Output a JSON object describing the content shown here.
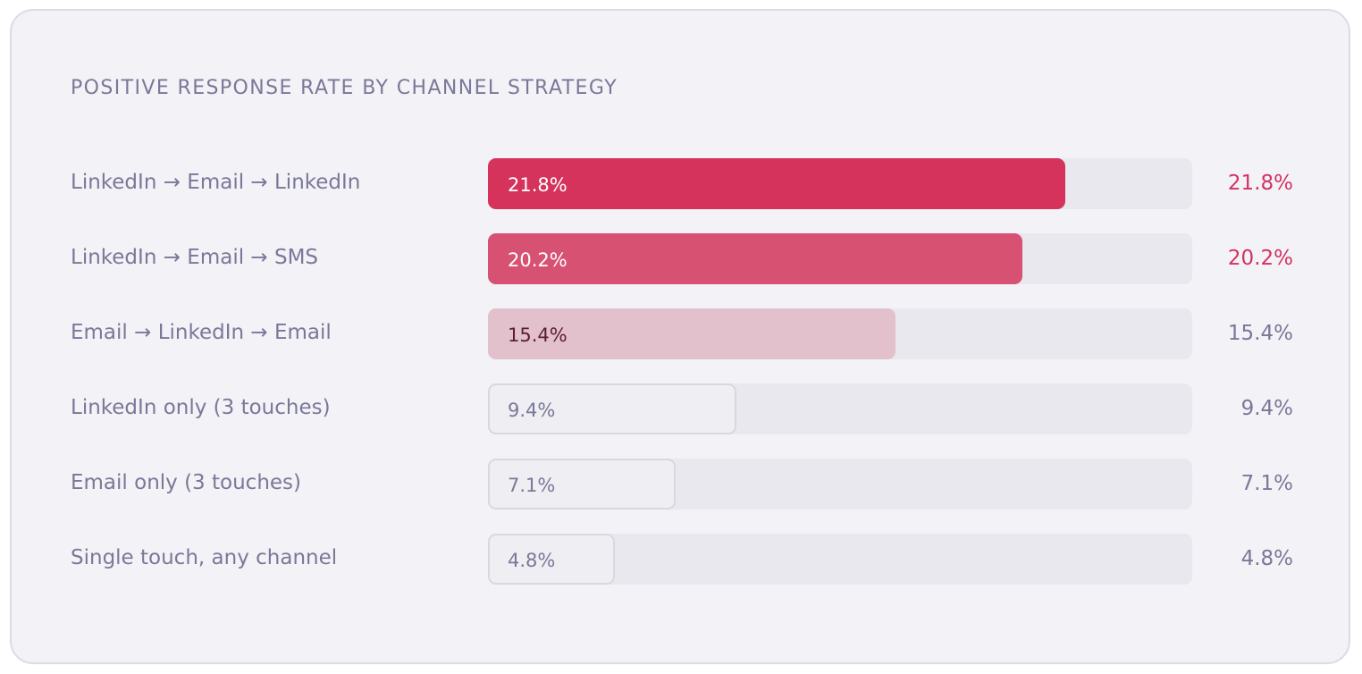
{
  "colors": {
    "card_bg": "#f3f2f7",
    "track": "#e9e8ee",
    "muted_text": "#7a7898",
    "accent": "#d33260"
  },
  "chart_data": {
    "type": "bar",
    "orientation": "horizontal",
    "title": "POSITIVE RESPONSE RATE BY CHANNEL STRATEGY",
    "xlim": [
      0,
      26.6
    ],
    "unit": "%",
    "categories": [
      "LinkedIn → Email → LinkedIn",
      "LinkedIn → Email → SMS",
      "Email → LinkedIn → Email",
      "LinkedIn only (3 touches)",
      "Email only (3 touches)",
      "Single touch, any channel"
    ],
    "values": [
      21.8,
      20.2,
      15.4,
      9.4,
      7.1,
      4.8
    ],
    "bars": [
      {
        "label": "LinkedIn → Email → LinkedIn",
        "value": 21.8,
        "display": "21.8%",
        "style": "primary"
      },
      {
        "label": "LinkedIn → Email → SMS",
        "value": 20.2,
        "display": "20.2%",
        "style": "secondary"
      },
      {
        "label": "Email → LinkedIn → Email",
        "value": 15.4,
        "display": "15.4%",
        "style": "tertiary"
      },
      {
        "label": "LinkedIn only (3 touches)",
        "value": 9.4,
        "display": "9.4%",
        "style": "neutral"
      },
      {
        "label": "Email only (3 touches)",
        "value": 7.1,
        "display": "7.1%",
        "style": "neutral"
      },
      {
        "label": "Single touch, any channel",
        "value": 4.8,
        "display": "4.8%",
        "style": "neutral"
      }
    ],
    "styles": {
      "primary": {
        "fill": "#d5325c",
        "border": "#d5325c",
        "label_color": "#ffffff",
        "value_color": "#d33260"
      },
      "secondary": {
        "fill": "#d75173",
        "border": "#d75173",
        "label_color": "#ffffff",
        "value_color": "#d33260"
      },
      "tertiary": {
        "fill": "#e2c1cd",
        "border": "#e2c1cd",
        "label_color": "#5c1d33",
        "value_color": "#7a7898"
      },
      "neutral": {
        "fill": "#eeeef3",
        "border": "#d9d8e0",
        "label_color": "#7a7898",
        "value_color": "#7a7898"
      }
    }
  }
}
